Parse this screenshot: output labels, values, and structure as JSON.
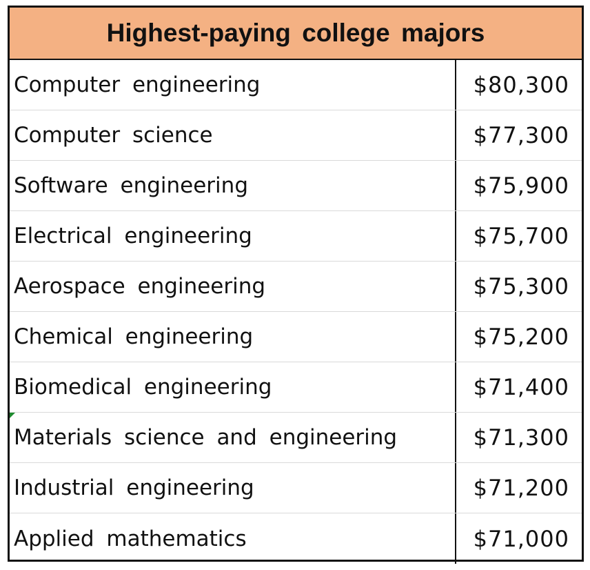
{
  "table": {
    "title": "Highest-paying college majors",
    "rows": [
      {
        "major": "Computer engineering",
        "salary": "$80,300"
      },
      {
        "major": "Computer science",
        "salary": "$77,300"
      },
      {
        "major": "Software engineering",
        "salary": "$75,900"
      },
      {
        "major": "Electrical engineering",
        "salary": "$75,700"
      },
      {
        "major": "Aerospace engineering",
        "salary": "$75,300"
      },
      {
        "major": "Chemical engineering",
        "salary": "$75,200"
      },
      {
        "major": "Biomedical engineering",
        "salary": "$71,400"
      },
      {
        "major": "Materials science and engineering",
        "salary": "$71,300"
      },
      {
        "major": "Industrial engineering",
        "salary": "$71,200"
      },
      {
        "major": "Applied mathematics",
        "salary": "$71,000"
      }
    ]
  },
  "colors": {
    "header_fill": "#f4b183",
    "border": "#111111",
    "gridline": "#d9d9d9",
    "comment_marker": "#1e8a2e"
  }
}
